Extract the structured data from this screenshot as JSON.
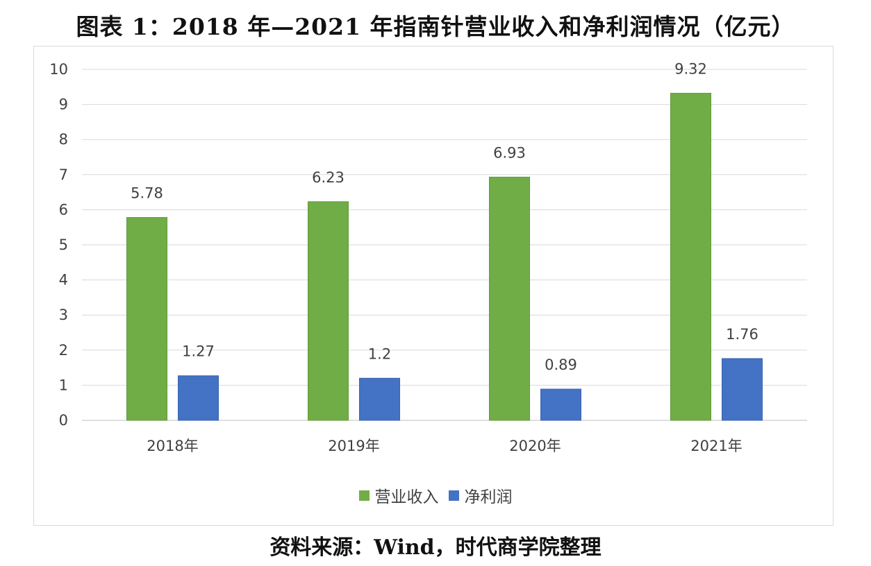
{
  "title": "图表 1：2018 年—2021 年指南针营业收入和净利润情况（亿元）",
  "source": "资料来源：Wind，时代商学院整理",
  "chart_data": {
    "type": "bar",
    "title": "图表 1：2018 年—2021 年指南针营业收入和净利润情况（亿元）",
    "categories": [
      "2018年",
      "2019年",
      "2020年",
      "2021年"
    ],
    "series": [
      {
        "name": "营业收入",
        "values": [
          5.78,
          6.23,
          6.93,
          9.32
        ],
        "color": "#70AD47"
      },
      {
        "name": "净利润",
        "values": [
          1.27,
          1.2,
          0.89,
          1.76
        ],
        "color": "#4472C4"
      }
    ],
    "data_labels": [
      [
        "5.78",
        "6.23",
        "6.93",
        "9.32"
      ],
      [
        "1.27",
        "1.2",
        "0.89",
        "1.76"
      ]
    ],
    "yticks": [
      "0",
      "1",
      "2",
      "3",
      "4",
      "5",
      "6",
      "7",
      "8",
      "9",
      "10"
    ],
    "ylim": [
      0,
      10
    ],
    "grid": true,
    "legend": "bottom"
  }
}
